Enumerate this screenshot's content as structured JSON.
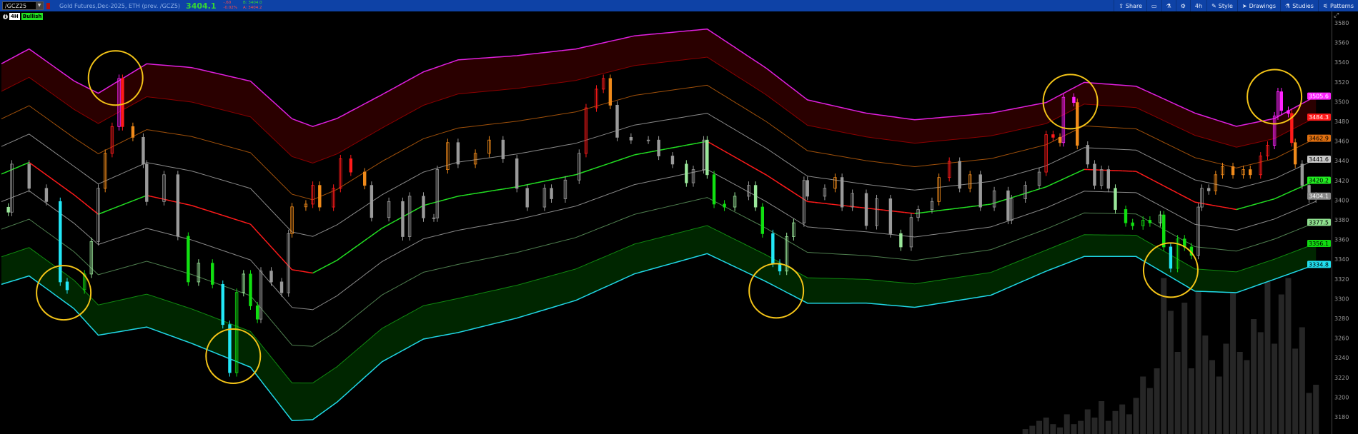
{
  "header": {
    "symbol": "/GCZ25",
    "description": "Gold Futures,Dec-2025, ETH (prev. /GCZ5)",
    "last_price": "3404.1",
    "change": "-.60",
    "change_pct": "-0.02%",
    "bid": "B: 3404.0",
    "ask": "A: 3404.2",
    "toolbar": {
      "share": "Share",
      "timeframe": "4h",
      "style": "Style",
      "drawings": "Drawings",
      "studies": "Studies",
      "patterns": "Patterns"
    }
  },
  "badges": {
    "timeframe": "4H",
    "trend": "Bullish"
  },
  "colors": {
    "toolbar_bg": "#0e42a6",
    "up_price": "#35d635",
    "down_price": "#ff4a4a",
    "band_top": "#e020e0",
    "band_3": "#8b0000",
    "band_2": "#a0500a",
    "band_1": "#8a8a8a",
    "center_up": "#22e022",
    "center_down": "#ff1a1a",
    "band_m1": "#8a8a8a",
    "band_m2": "#4f7f4f",
    "band_m3": "#108a10",
    "band_bottom": "#20d8e8",
    "fill_top": "#2a0000",
    "fill_bottom": "#002600",
    "annotation": "#f5c518",
    "volume": "#262626"
  },
  "chart_data": {
    "type": "candlestick",
    "symbol": "/GCZ25",
    "timeframe": "4H",
    "ylim": [
      3170,
      3590
    ],
    "yticks": [
      3180,
      3200,
      3220,
      3240,
      3260,
      3280,
      3300,
      3320,
      3340,
      3360,
      3380,
      3400,
      3420,
      3440,
      3460,
      3480,
      3500,
      3520,
      3540,
      3560,
      3580
    ],
    "price_labels": [
      {
        "value": "3505.6",
        "color": "#ff22ff",
        "text": "#fff"
      },
      {
        "value": "3484.3",
        "color": "#ff1a1a",
        "text": "#fff"
      },
      {
        "value": "3462.9",
        "color": "#e07010",
        "text": "#000"
      },
      {
        "value": "3441.6",
        "color": "#c8c8c8",
        "text": "#000"
      },
      {
        "value": "3420.2",
        "color": "#22ee22",
        "text": "#000"
      },
      {
        "value": "3404.1",
        "color": "#888888",
        "text": "#fff"
      },
      {
        "value": "3377.5",
        "color": "#8fe08f",
        "text": "#000"
      },
      {
        "value": "3356.1",
        "color": "#11d811",
        "text": "#000"
      },
      {
        "value": "3334.8",
        "color": "#22e0f0",
        "text": "#000"
      }
    ],
    "band_center": [
      [
        0,
        3426.5
      ],
      [
        8,
        3438.3
      ],
      [
        21,
        3405.4
      ],
      [
        28,
        3385.7
      ],
      [
        42,
        3404.8
      ],
      [
        55,
        3394.6
      ],
      [
        72,
        3375.6
      ],
      [
        84,
        3329.4
      ],
      [
        90,
        3326
      ],
      [
        97,
        3338.9
      ],
      [
        110,
        3371.5
      ],
      [
        122,
        3394.6
      ],
      [
        132,
        3404
      ],
      [
        149,
        3413.5
      ],
      [
        166,
        3425.8
      ],
      [
        183,
        3446
      ],
      [
        204,
        3459.7
      ],
      [
        221,
        3425.8
      ],
      [
        233,
        3398.6
      ],
      [
        250,
        3391.9
      ],
      [
        264,
        3386.4
      ],
      [
        286,
        3395.9
      ],
      [
        302,
        3413.5
      ],
      [
        313,
        3431.2
      ],
      [
        328,
        3429.2
      ],
      [
        345,
        3398
      ],
      [
        357,
        3390.5
      ],
      [
        368,
        3401.3
      ],
      [
        380,
        3420.2
      ]
    ],
    "band_step": [
      [
        0,
        28.0
      ],
      [
        8,
        28.8
      ],
      [
        21,
        28.9
      ],
      [
        28,
        30.7
      ],
      [
        42,
        33.4
      ],
      [
        55,
        35.0
      ],
      [
        72,
        36.3
      ],
      [
        84,
        38.3
      ],
      [
        90,
        37.2
      ],
      [
        97,
        36
      ],
      [
        110,
        33.9
      ],
      [
        122,
        33.9
      ],
      [
        132,
        34.6
      ],
      [
        149,
        33.3
      ],
      [
        166,
        31.9
      ],
      [
        183,
        30.2
      ],
      [
        204,
        28.5
      ],
      [
        221,
        27.1
      ],
      [
        233,
        25.8
      ],
      [
        250,
        24.1
      ],
      [
        264,
        23.8
      ],
      [
        286,
        23.1
      ],
      [
        302,
        21.4
      ],
      [
        313,
        22.1
      ],
      [
        328,
        21.6
      ],
      [
        345,
        22.6
      ],
      [
        357,
        21.1
      ],
      [
        368,
        20.4
      ],
      [
        380,
        21.35
      ]
    ],
    "closes": [
      [
        2,
        3387.8
      ],
      [
        3,
        3436.6
      ],
      [
        8,
        3412
      ],
      [
        13,
        3398.6
      ],
      [
        17,
        3317
      ],
      [
        19,
        3309
      ],
      [
        24,
        3325
      ],
      [
        26,
        3358
      ],
      [
        28,
        3412
      ],
      [
        30,
        3447.5
      ],
      [
        32,
        3474.7
      ],
      [
        34,
        3523.5
      ],
      [
        35,
        3474.7
      ],
      [
        38,
        3463.8
      ],
      [
        41,
        3436.6
      ],
      [
        42,
        3398.6
      ],
      [
        47,
        3425.8
      ],
      [
        51,
        3363.3
      ],
      [
        54,
        3317
      ],
      [
        57,
        3336
      ],
      [
        61,
        3314.5
      ],
      [
        64,
        3273.7
      ],
      [
        66,
        3224.9
      ],
      [
        68,
        3306.3
      ],
      [
        70,
        3325
      ],
      [
        72,
        3292.7
      ],
      [
        74,
        3279.2
      ],
      [
        75,
        3328
      ],
      [
        78,
        3317
      ],
      [
        81,
        3306
      ],
      [
        83,
        3366
      ],
      [
        84,
        3393.2
      ],
      [
        88,
        3396
      ],
      [
        90,
        3415
      ],
      [
        92,
        3393
      ],
      [
        96,
        3412
      ],
      [
        98,
        3442
      ],
      [
        101,
        3428.5
      ],
      [
        105,
        3415
      ],
      [
        107,
        3382.4
      ],
      [
        112,
        3398.6
      ],
      [
        116,
        3363
      ],
      [
        118,
        3404
      ],
      [
        122,
        3382
      ],
      [
        125,
        3382
      ],
      [
        126,
        3431
      ],
      [
        129,
        3458.4
      ],
      [
        132,
        3436.6
      ],
      [
        137,
        3447.5
      ],
      [
        141,
        3461
      ],
      [
        145,
        3442
      ],
      [
        149,
        3412
      ],
      [
        152,
        3393
      ],
      [
        157,
        3412
      ],
      [
        159,
        3401.4
      ],
      [
        163,
        3420.4
      ],
      [
        167,
        3447.5
      ],
      [
        169,
        3493.7
      ],
      [
        172,
        3512.7
      ],
      [
        174,
        3523.5
      ],
      [
        176,
        3496.4
      ],
      [
        178,
        3463.8
      ],
      [
        182,
        3461
      ],
      [
        187,
        3461
      ],
      [
        190,
        3444.8
      ],
      [
        194,
        3436.6
      ],
      [
        198,
        3417.6
      ],
      [
        200,
        3431
      ],
      [
        203,
        3461
      ],
      [
        204,
        3425.8
      ],
      [
        206,
        3396
      ],
      [
        209,
        3393
      ],
      [
        212,
        3404
      ],
      [
        216,
        3415
      ],
      [
        218,
        3393
      ],
      [
        220,
        3366
      ],
      [
        223,
        3336
      ],
      [
        225,
        3328
      ],
      [
        227,
        3363
      ],
      [
        229,
        3377
      ],
      [
        232,
        3420
      ],
      [
        233,
        3404
      ],
      [
        238,
        3412
      ],
      [
        241,
        3423
      ],
      [
        243,
        3393
      ],
      [
        246,
        3406.8
      ],
      [
        250,
        3374.2
      ],
      [
        253,
        3401.4
      ],
      [
        257,
        3366
      ],
      [
        260,
        3352.5
      ],
      [
        263,
        3382.4
      ],
      [
        265,
        3390.5
      ],
      [
        269,
        3398.6
      ],
      [
        271,
        3423
      ],
      [
        274,
        3439.4
      ],
      [
        277,
        3412
      ],
      [
        280,
        3425.8
      ],
      [
        283,
        3393
      ],
      [
        287,
        3409.5
      ],
      [
        291,
        3379.6
      ],
      [
        292,
        3401.4
      ],
      [
        296,
        3415
      ],
      [
        300,
        3428.5
      ],
      [
        302,
        3466.5
      ],
      [
        304,
        3463.8
      ],
      [
        306,
        3458.4
      ],
      [
        307,
        3504.5
      ],
      [
        310,
        3499.1
      ],
      [
        311,
        3455.7
      ],
      [
        314,
        3436.6
      ],
      [
        316,
        3415
      ],
      [
        318,
        3431
      ],
      [
        320,
        3412
      ],
      [
        322,
        3390.5
      ],
      [
        325,
        3377
      ],
      [
        327,
        3374
      ],
      [
        330,
        3379.6
      ],
      [
        332,
        3377
      ],
      [
        335,
        3385
      ],
      [
        336,
        3352.5
      ],
      [
        338,
        3330.8
      ],
      [
        340,
        3360.6
      ],
      [
        342,
        3352.5
      ],
      [
        344,
        3344
      ],
      [
        346,
        3393
      ],
      [
        347,
        3412
      ],
      [
        349,
        3409.5
      ],
      [
        351,
        3425.8
      ],
      [
        353,
        3434
      ],
      [
        356,
        3425.8
      ],
      [
        359,
        3431
      ],
      [
        361,
        3425.8
      ],
      [
        364,
        3444.8
      ],
      [
        366,
        3455.7
      ],
      [
        368,
        3485.5
      ],
      [
        369,
        3510
      ],
      [
        370,
        3491
      ],
      [
        372,
        3488
      ],
      [
        373,
        3458.4
      ],
      [
        374,
        3436.6
      ],
      [
        376,
        3415
      ],
      [
        378,
        3401.4
      ],
      [
        380,
        3404.1
      ]
    ],
    "volume_relative": [
      [
        296,
        3
      ],
      [
        298,
        5
      ],
      [
        300,
        8
      ],
      [
        302,
        10
      ],
      [
        304,
        6
      ],
      [
        306,
        4
      ],
      [
        308,
        12
      ],
      [
        310,
        6
      ],
      [
        312,
        8
      ],
      [
        314,
        15
      ],
      [
        316,
        10
      ],
      [
        318,
        20
      ],
      [
        320,
        8
      ],
      [
        322,
        14
      ],
      [
        324,
        18
      ],
      [
        326,
        12
      ],
      [
        328,
        22
      ],
      [
        330,
        35
      ],
      [
        332,
        28
      ],
      [
        334,
        40
      ],
      [
        336,
        95
      ],
      [
        338,
        75
      ],
      [
        340,
        50
      ],
      [
        342,
        80
      ],
      [
        344,
        40
      ],
      [
        346,
        100
      ],
      [
        348,
        60
      ],
      [
        350,
        45
      ],
      [
        352,
        35
      ],
      [
        354,
        55
      ],
      [
        356,
        98
      ],
      [
        358,
        50
      ],
      [
        360,
        45
      ],
      [
        362,
        70
      ],
      [
        364,
        62
      ],
      [
        366,
        98
      ],
      [
        368,
        55
      ],
      [
        370,
        85
      ],
      [
        372,
        95
      ],
      [
        374,
        52
      ],
      [
        376,
        65
      ],
      [
        378,
        25
      ],
      [
        380,
        30
      ]
    ],
    "annotations": [
      [
        33,
        3524
      ],
      [
        18,
        3306
      ],
      [
        67,
        3241.6
      ],
      [
        224,
        3308
      ],
      [
        309,
        3500
      ],
      [
        338,
        3329
      ],
      [
        368,
        3505
      ]
    ]
  }
}
